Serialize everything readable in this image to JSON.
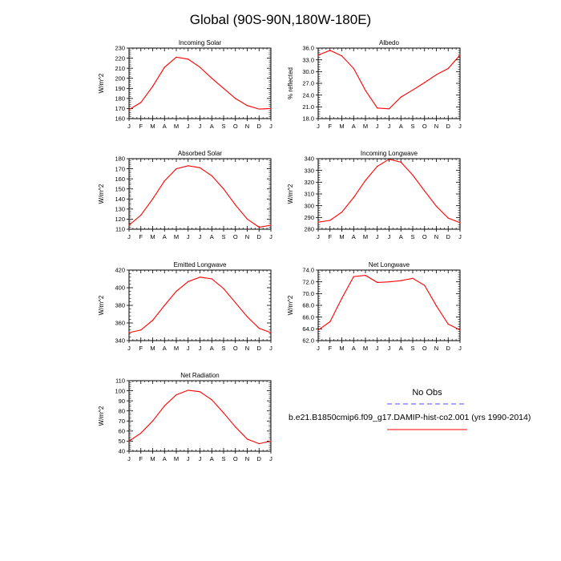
{
  "figure": {
    "title": "Global (90S-90N,180W-180E)"
  },
  "legend": {
    "title": "No Obs",
    "series_label": "b.e21.B1850cmip6.f09_g17.DAMIP-hist-co2.001 (yrs 1990-2014)",
    "series_color": "#ff0000",
    "obs_color": "#6f6fff"
  },
  "chart_data": [
    {
      "type": "line",
      "title": "Incoming Solar",
      "ylabel": "W/m^2",
      "ylim": [
        160,
        230
      ],
      "yticks": [
        160,
        170,
        180,
        190,
        200,
        210,
        220,
        230
      ],
      "ytick_labels": [
        "160",
        "170",
        "180",
        "190",
        "200",
        "210",
        "220",
        "230"
      ],
      "categories": [
        "J",
        "F",
        "M",
        "A",
        "M",
        "J",
        "J",
        "A",
        "S",
        "O",
        "N",
        "D",
        "J"
      ],
      "series": [
        {
          "values": [
            169,
            176,
            192,
            211,
            221,
            219,
            211,
            200,
            190,
            180,
            173,
            169.5,
            170
          ]
        }
      ]
    },
    {
      "type": "line",
      "title": "Albedo",
      "ylabel": "% reflected",
      "ylim": [
        18,
        36
      ],
      "yticks": [
        18,
        21,
        24,
        27,
        30,
        33,
        36
      ],
      "ytick_labels": [
        "18.0",
        "21.0",
        "24.0",
        "27.0",
        "30.0",
        "33.0",
        "36.0"
      ],
      "categories": [
        "J",
        "F",
        "M",
        "A",
        "M",
        "J",
        "J",
        "A",
        "S",
        "O",
        "N",
        "D",
        "J"
      ],
      "series": [
        {
          "values": [
            34.2,
            35.4,
            34.0,
            30.8,
            25.2,
            20.7,
            20.5,
            23.5,
            25.3,
            27.2,
            29.2,
            30.8,
            34.2
          ]
        }
      ]
    },
    {
      "type": "line",
      "title": "Absorbed Solar",
      "ylabel": "W/m^2",
      "ylim": [
        110,
        180
      ],
      "yticks": [
        110,
        120,
        130,
        140,
        150,
        160,
        170,
        180
      ],
      "ytick_labels": [
        "110",
        "120",
        "130",
        "140",
        "150",
        "160",
        "170",
        "180"
      ],
      "categories": [
        "J",
        "F",
        "M",
        "A",
        "M",
        "J",
        "J",
        "A",
        "S",
        "O",
        "N",
        "D",
        "J"
      ],
      "series": [
        {
          "values": [
            114,
            124,
            140,
            158,
            170,
            173,
            171,
            163,
            150,
            134,
            120,
            112,
            114
          ]
        }
      ]
    },
    {
      "type": "line",
      "title": "Incoming Longwave",
      "ylabel": "W/m^2",
      "ylim": [
        280,
        340
      ],
      "yticks": [
        280,
        290,
        300,
        310,
        320,
        330,
        340
      ],
      "ytick_labels": [
        "280",
        "290",
        "300",
        "310",
        "320",
        "330",
        "340"
      ],
      "categories": [
        "J",
        "F",
        "M",
        "A",
        "M",
        "J",
        "J",
        "A",
        "S",
        "O",
        "N",
        "D",
        "J"
      ],
      "series": [
        {
          "values": [
            286,
            287.5,
            294.5,
            307,
            321.5,
            333.5,
            339.5,
            337,
            326,
            312.5,
            299.5,
            289.5,
            285.5
          ]
        }
      ]
    },
    {
      "type": "line",
      "title": "Emitted Longwave",
      "ylabel": "W/m^2",
      "ylim": [
        340,
        420
      ],
      "yticks": [
        340,
        360,
        380,
        400,
        420
      ],
      "ytick_labels": [
        "340",
        "360",
        "380",
        "400",
        "420"
      ],
      "categories": [
        "J",
        "F",
        "M",
        "A",
        "M",
        "J",
        "J",
        "A",
        "S",
        "O",
        "N",
        "D",
        "J"
      ],
      "series": [
        {
          "values": [
            349,
            352,
            363,
            380,
            396,
            407,
            412,
            410,
            399,
            383,
            367,
            354,
            349
          ]
        }
      ]
    },
    {
      "type": "line",
      "title": "Net Longwave",
      "ylabel": "W/m^2",
      "ylim": [
        62,
        74
      ],
      "yticks": [
        62,
        64,
        66,
        68,
        70,
        72,
        74
      ],
      "ytick_labels": [
        "62.0",
        "64.0",
        "66.0",
        "68.0",
        "70.0",
        "72.0",
        "74.0"
      ],
      "categories": [
        "J",
        "F",
        "M",
        "A",
        "M",
        "J",
        "J",
        "A",
        "S",
        "O",
        "N",
        "D",
        "J"
      ],
      "series": [
        {
          "values": [
            63.8,
            65.2,
            69.2,
            72.9,
            73.1,
            71.9,
            72.0,
            72.2,
            72.6,
            71.4,
            67.9,
            64.8,
            63.8
          ]
        }
      ]
    },
    {
      "type": "line",
      "title": "Net Radiation",
      "ylabel": "W/m^2",
      "ylim": [
        40,
        110
      ],
      "yticks": [
        40,
        50,
        60,
        70,
        80,
        90,
        100,
        110
      ],
      "ytick_labels": [
        "40",
        "50",
        "60",
        "70",
        "80",
        "90",
        "100",
        "110"
      ],
      "categories": [
        "J",
        "F",
        "M",
        "A",
        "M",
        "J",
        "J",
        "A",
        "S",
        "O",
        "N",
        "D",
        "J"
      ],
      "series": [
        {
          "values": [
            50,
            58,
            70,
            85,
            96,
            100.5,
            99,
            91,
            78,
            64,
            52,
            47.5,
            50
          ]
        }
      ]
    }
  ]
}
